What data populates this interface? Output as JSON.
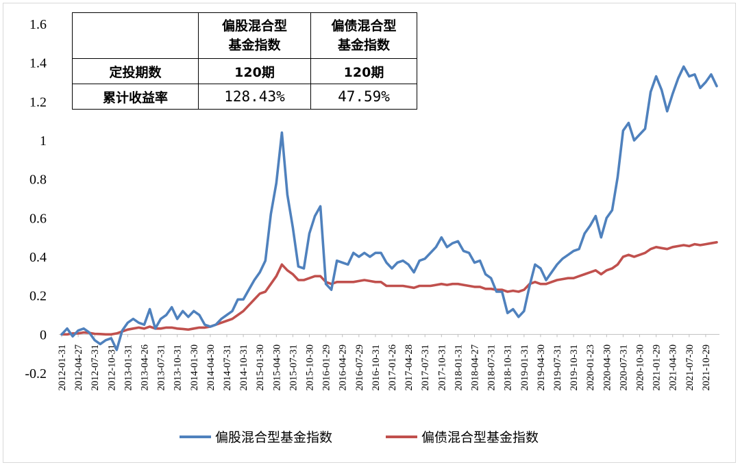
{
  "chart_data": {
    "type": "line",
    "ylim": [
      -0.2,
      1.6
    ],
    "y_ticks": [
      "-0.2",
      "0",
      "0.2",
      "0.4",
      "0.6",
      "0.8",
      "1",
      "1.2",
      "1.4",
      "1.6"
    ],
    "x_tick_labels": [
      "2012-01-31",
      "2012-04-27",
      "2012-07-31",
      "2012-10-31",
      "2013-01-31",
      "2013-04-26",
      "2013-07-31",
      "2013-10-31",
      "2014-01-30",
      "2014-04-30",
      "2014-07-31",
      "2014-10-31",
      "2015-01-30",
      "2015-04-30",
      "2015-07-31",
      "2015-10-30",
      "2016-01-29",
      "2016-04-29",
      "2016-07-29",
      "2016-10-31",
      "2017-01-26",
      "2017-04-28",
      "2017-07-31",
      "2017-10-31",
      "2018-01-31",
      "2018-04-27",
      "2018-07-31",
      "2018-10-31",
      "2019-01-31",
      "2019-04-30",
      "2019-07-31",
      "2019-10-31",
      "2020-01-23",
      "2020-04-30",
      "2020-07-31",
      "2020-10-30",
      "2021-01-29",
      "2021-04-30",
      "2021-07-30",
      "2021-10-29"
    ],
    "series": [
      {
        "name": "偏股混合型基金指数",
        "color": "#4f81bd",
        "values": [
          0.0,
          0.03,
          -0.01,
          0.02,
          0.03,
          0.01,
          -0.03,
          -0.05,
          -0.03,
          -0.02,
          -0.08,
          0.02,
          0.06,
          0.08,
          0.06,
          0.05,
          0.13,
          0.03,
          0.08,
          0.1,
          0.14,
          0.08,
          0.12,
          0.09,
          0.12,
          0.1,
          0.05,
          0.04,
          0.05,
          0.08,
          0.1,
          0.12,
          0.18,
          0.18,
          0.23,
          0.28,
          0.32,
          0.38,
          0.62,
          0.78,
          1.04,
          0.72,
          0.55,
          0.35,
          0.34,
          0.52,
          0.61,
          0.66,
          0.26,
          0.23,
          0.38,
          0.37,
          0.36,
          0.42,
          0.4,
          0.42,
          0.4,
          0.42,
          0.42,
          0.37,
          0.34,
          0.37,
          0.38,
          0.36,
          0.32,
          0.38,
          0.39,
          0.42,
          0.45,
          0.5,
          0.45,
          0.47,
          0.48,
          0.43,
          0.42,
          0.37,
          0.38,
          0.31,
          0.29,
          0.22,
          0.22,
          0.11,
          0.13,
          0.09,
          0.12,
          0.25,
          0.36,
          0.34,
          0.28,
          0.32,
          0.36,
          0.39,
          0.41,
          0.43,
          0.44,
          0.52,
          0.56,
          0.61,
          0.5,
          0.6,
          0.64,
          0.81,
          1.05,
          1.09,
          1.0,
          1.03,
          1.06,
          1.25,
          1.33,
          1.26,
          1.15,
          1.24,
          1.32,
          1.38,
          1.33,
          1.34,
          1.27,
          1.3,
          1.34,
          1.28
        ]
      },
      {
        "name": "偏债混合型基金指数",
        "color": "#c0504d",
        "values": [
          0.0,
          0.0,
          0.005,
          0.005,
          0.01,
          0.008,
          0.003,
          0.002,
          0.0,
          0.0,
          0.005,
          0.015,
          0.025,
          0.03,
          0.035,
          0.03,
          0.04,
          0.03,
          0.03,
          0.035,
          0.035,
          0.03,
          0.028,
          0.025,
          0.03,
          0.035,
          0.035,
          0.04,
          0.05,
          0.06,
          0.07,
          0.08,
          0.1,
          0.12,
          0.15,
          0.18,
          0.21,
          0.22,
          0.26,
          0.3,
          0.36,
          0.33,
          0.31,
          0.28,
          0.28,
          0.29,
          0.3,
          0.3,
          0.27,
          0.26,
          0.27,
          0.27,
          0.27,
          0.27,
          0.275,
          0.28,
          0.275,
          0.27,
          0.27,
          0.25,
          0.25,
          0.25,
          0.25,
          0.245,
          0.24,
          0.25,
          0.25,
          0.25,
          0.255,
          0.26,
          0.255,
          0.26,
          0.26,
          0.255,
          0.25,
          0.245,
          0.245,
          0.235,
          0.235,
          0.23,
          0.23,
          0.22,
          0.225,
          0.22,
          0.23,
          0.26,
          0.27,
          0.26,
          0.26,
          0.27,
          0.28,
          0.285,
          0.29,
          0.29,
          0.3,
          0.31,
          0.32,
          0.33,
          0.31,
          0.33,
          0.34,
          0.36,
          0.4,
          0.41,
          0.4,
          0.41,
          0.42,
          0.44,
          0.45,
          0.445,
          0.44,
          0.45,
          0.455,
          0.46,
          0.455,
          0.465,
          0.46,
          0.465,
          0.47,
          0.475
        ]
      }
    ]
  },
  "table": {
    "headers": [
      "",
      "偏股混合型\n基金指数",
      "偏债混合型\n基金指数"
    ],
    "rows": [
      {
        "label": "定投期数",
        "stock": "120期",
        "bond": "120期"
      },
      {
        "label": "累计收益率",
        "stock": "128.43%",
        "bond": "47.59%"
      }
    ]
  },
  "legend": {
    "stock_label": "偏股混合型基金指数",
    "bond_label": "偏债混合型基金指数"
  }
}
